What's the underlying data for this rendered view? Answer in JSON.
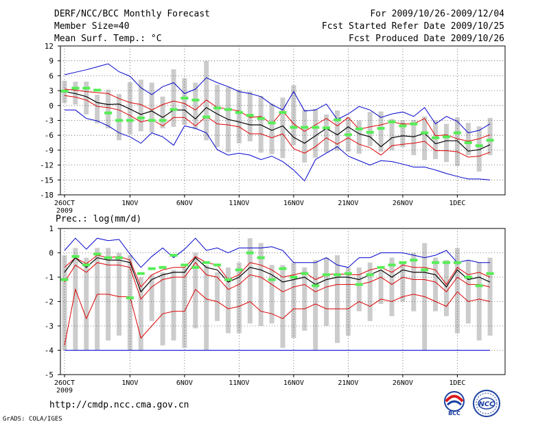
{
  "header": {
    "title": "DERF/NCC/BCC Monthly Forecast",
    "member_size": "Member Size=40",
    "variable": "Mean Surf. Temp.: °C",
    "period": "For 2009/10/26-2009/12/04",
    "start_date": "Fcst Started Refer Date 2009/10/25",
    "produced_date": "Fcst Produced Date 2009/10/26"
  },
  "footer": {
    "url": "http://cmdp.ncc.cma.gov.cn",
    "credit": "GrADS: COLA/IGES",
    "logo_bcc": "BCC",
    "logo_ncc": "NCC"
  },
  "colors": {
    "max_min": "#0000cc",
    "spread": "#dd0000",
    "mean": "#000000",
    "box": "#cccccc",
    "member": "#55ee55",
    "grid": "#555555"
  },
  "chart_data": [
    {
      "type": "line",
      "title": "Mean Surf. Temp.: °C",
      "x_tick_labels": [
        "26OCT",
        "1NOV",
        "6NOV",
        "11NOV",
        "16NOV",
        "21NOV",
        "26NOV",
        "1DEC"
      ],
      "x_tick_days": [
        0,
        6,
        11,
        16,
        21,
        26,
        31,
        36
      ],
      "year_label": "2009",
      "ylim": [
        -18,
        12
      ],
      "yticks": [
        12,
        9,
        6,
        3,
        0,
        -3,
        -6,
        -9,
        -12,
        -15,
        -18
      ],
      "days": 40,
      "series": [
        {
          "name": "max",
          "color": "#0000cc",
          "values": [
            6.2,
            6.7,
            7.2,
            7.8,
            8.4,
            6.8,
            5.9,
            3.6,
            2.2,
            3.8,
            4.6,
            2.4,
            3.3,
            5.6,
            4.6,
            3.8,
            2.8,
            2.4,
            1.8,
            0.2,
            -0.9,
            2.8,
            -1.1,
            -0.9,
            0.3,
            -2.8,
            -1.7,
            -0.2,
            -0.9,
            -2.4,
            -1.7,
            -1.3,
            -2.2,
            -0.4,
            -3.7,
            -2.2,
            -3.2,
            -5.5,
            -5.0,
            -3.7
          ]
        },
        {
          "name": "upper",
          "color": "#dd0000",
          "values": [
            3.3,
            3.1,
            2.8,
            2.6,
            2.4,
            1.4,
            0.6,
            0.2,
            -0.9,
            0.2,
            0.9,
            0.4,
            -0.9,
            1.1,
            -0.4,
            -0.7,
            -1.1,
            -2.4,
            -2.2,
            -3.7,
            -1.1,
            -3.7,
            -5.2,
            -3.9,
            -2.6,
            -4.1,
            -2.4,
            -4.8,
            -4.3,
            -3.9,
            -3.3,
            -3.7,
            -3.7,
            -2.6,
            -6.1,
            -5.9,
            -6.7,
            -7.2,
            -6.7,
            -5.9
          ]
        },
        {
          "name": "mean",
          "color": "#000000",
          "values": [
            2.8,
            2.4,
            1.8,
            0.6,
            0.2,
            0.3,
            -0.7,
            -1.8,
            -1.1,
            -2.4,
            -0.9,
            -0.9,
            -2.7,
            -0.4,
            -1.7,
            -2.8,
            -3.3,
            -3.9,
            -3.9,
            -5.0,
            -4.1,
            -6.4,
            -7.6,
            -6.1,
            -4.6,
            -5.9,
            -4.3,
            -5.7,
            -6.3,
            -8.3,
            -6.5,
            -6.1,
            -6.3,
            -5.6,
            -7.7,
            -7.1,
            -7.1,
            -9.2,
            -8.9,
            -7.9
          ]
        },
        {
          "name": "lower",
          "color": "#dd0000",
          "values": [
            2.0,
            1.7,
            1.1,
            -0.2,
            -0.4,
            -0.9,
            -2.0,
            -3.3,
            -2.8,
            -4.1,
            -2.4,
            -2.4,
            -4.1,
            -2.2,
            -3.7,
            -3.9,
            -4.3,
            -5.7,
            -5.7,
            -6.5,
            -5.7,
            -8.7,
            -9.6,
            -8.3,
            -6.5,
            -7.8,
            -6.5,
            -7.8,
            -8.5,
            -10.0,
            -8.1,
            -7.8,
            -7.6,
            -7.2,
            -9.1,
            -9.1,
            -9.3,
            -10.4,
            -10.2,
            -9.4
          ]
        },
        {
          "name": "min",
          "color": "#0000cc",
          "values": [
            -0.9,
            -0.9,
            -2.6,
            -3.1,
            -4.1,
            -5.5,
            -6.3,
            -7.6,
            -5.5,
            -6.3,
            -8.0,
            -4.1,
            -4.6,
            -5.5,
            -8.9,
            -10.0,
            -9.6,
            -10.0,
            -10.9,
            -10.2,
            -11.3,
            -13.0,
            -15.2,
            -10.9,
            -9.6,
            -8.3,
            -10.2,
            -11.1,
            -12.0,
            -11.1,
            -11.3,
            -11.8,
            -12.4,
            -12.4,
            -13.0,
            -13.7,
            -14.3,
            -14.8,
            -14.8,
            -15.0
          ]
        },
        {
          "name": "member_mark",
          "color": "#55ee55",
          "values": [
            2.9,
            3.5,
            3.5,
            3.1,
            -1.5,
            -3.0,
            -3.0,
            -2.5,
            -3.0,
            -3.0,
            -0.8,
            1.5,
            1.1,
            -2.3,
            -0.5,
            -0.8,
            -1.4,
            -2.0,
            -2.6,
            -3.5,
            -1.4,
            -4.4,
            -4.4,
            -4.4,
            -4.5,
            -2.9,
            -5.9,
            -4.7,
            -5.4,
            -4.6,
            -3.3,
            -4.1,
            -3.7,
            -5.5,
            -6.5,
            -6.3,
            -5.5,
            -7.5,
            -8.1,
            -7.0
          ]
        }
      ],
      "boxes_top": [
        5.0,
        4.8,
        4.8,
        2.2,
        3.2,
        2.3,
        4.7,
        5.2,
        4.6,
        1.8,
        7.3,
        5.5,
        4.6,
        9.0,
        4.2,
        3.7,
        3.2,
        2.8,
        1.9,
        0.4,
        1.6,
        4.1,
        -0.8,
        -0.7,
        -1.8,
        -1.0,
        -2.3,
        -3.0,
        -1.3,
        -1.2,
        -2.7,
        -3.0,
        -2.9,
        -2.2,
        -3.0,
        -3.7,
        -2.4,
        -3.5,
        -4.2,
        -2.5
      ],
      "boxes_bottom": [
        0.5,
        0.2,
        -1.8,
        -3.6,
        -4.6,
        -7.0,
        -5.8,
        -5.2,
        -5.4,
        -4.6,
        -4.3,
        -3.9,
        -4.8,
        -7.0,
        -8.4,
        -9.4,
        -7.6,
        -7.2,
        -9.5,
        -9.8,
        -10.6,
        -8.0,
        -11.5,
        -10.5,
        -9.5,
        -9.1,
        -9.3,
        -9.7,
        -8.2,
        -9.3,
        -9.0,
        -8.4,
        -10.0,
        -11.0,
        -10.8,
        -11.4,
        -12.2,
        -10.0,
        -13.3,
        -10.0
      ]
    },
    {
      "type": "line",
      "title": "Prec.: log(mm/d)",
      "x_tick_labels": [
        "26OCT",
        "1NOV",
        "6NOV",
        "11NOV",
        "16NOV",
        "21NOV",
        "26NOV",
        "1DEC"
      ],
      "x_tick_days": [
        0,
        6,
        11,
        16,
        21,
        26,
        31,
        36
      ],
      "year_label": "2009",
      "ylim": [
        -5,
        1
      ],
      "yticks": [
        1,
        0,
        -1,
        -2,
        -3,
        -4,
        -5
      ],
      "days": 40,
      "series": [
        {
          "name": "max",
          "color": "#0000cc",
          "values": [
            0.1,
            0.6,
            0.15,
            0.6,
            0.5,
            0.55,
            -0.05,
            -0.6,
            -0.15,
            0.2,
            -0.2,
            0.15,
            0.6,
            0.1,
            0.2,
            0.0,
            0.2,
            0.2,
            0.2,
            0.25,
            0.1,
            -0.4,
            -0.4,
            -0.4,
            -0.2,
            -0.5,
            -0.6,
            -0.2,
            -0.2,
            0.0,
            0.0,
            0.0,
            -0.1,
            -0.2,
            -0.1,
            0.1,
            -0.4,
            -0.3,
            -0.4,
            -0.4
          ]
        },
        {
          "name": "upper",
          "color": "#dd0000",
          "values": [
            -0.6,
            -0.2,
            -0.45,
            -0.1,
            -0.2,
            -0.15,
            -0.3,
            -1.4,
            -0.9,
            -0.7,
            -0.6,
            -0.6,
            -0.15,
            -0.4,
            -0.5,
            -1.1,
            -0.9,
            -0.4,
            -0.5,
            -0.7,
            -1.0,
            -0.9,
            -0.8,
            -1.1,
            -0.9,
            -0.85,
            -0.9,
            -0.9,
            -0.7,
            -0.6,
            -0.8,
            -0.5,
            -0.6,
            -0.6,
            -0.7,
            -1.3,
            -0.6,
            -0.9,
            -0.8,
            -1.0
          ]
        },
        {
          "name": "mean",
          "color": "#000000",
          "values": [
            -0.8,
            -0.2,
            -0.6,
            -0.2,
            -0.3,
            -0.3,
            -0.4,
            -1.6,
            -1.1,
            -0.9,
            -0.8,
            -0.8,
            -0.2,
            -0.6,
            -0.7,
            -1.2,
            -1.0,
            -0.6,
            -0.7,
            -0.9,
            -1.2,
            -1.1,
            -1.0,
            -1.3,
            -1.1,
            -1.0,
            -1.0,
            -1.1,
            -0.9,
            -0.7,
            -1.0,
            -0.7,
            -0.8,
            -0.8,
            -0.9,
            -1.4,
            -0.7,
            -1.1,
            -1.0,
            -1.2
          ]
        },
        {
          "name": "lower",
          "color": "#dd0000",
          "values": [
            -1.2,
            -0.5,
            -0.8,
            -0.4,
            -0.5,
            -0.5,
            -0.6,
            -1.9,
            -1.4,
            -1.1,
            -1.0,
            -1.0,
            -0.4,
            -0.9,
            -1.0,
            -1.5,
            -1.3,
            -0.9,
            -1.0,
            -1.3,
            -1.6,
            -1.4,
            -1.3,
            -1.6,
            -1.4,
            -1.3,
            -1.3,
            -1.3,
            -1.2,
            -1.0,
            -1.3,
            -1.0,
            -1.1,
            -1.1,
            -1.2,
            -1.6,
            -1.0,
            -1.3,
            -1.3,
            -1.4
          ]
        },
        {
          "name": "min",
          "color": "#dd0000",
          "values": [
            -3.8,
            -1.5,
            -2.7,
            -1.7,
            -1.7,
            -1.8,
            -1.8,
            -3.5,
            -3.0,
            -2.5,
            -2.4,
            -2.4,
            -1.5,
            -1.9,
            -2.0,
            -2.3,
            -2.2,
            -2.0,
            -2.4,
            -2.5,
            -2.7,
            -2.3,
            -2.3,
            -2.1,
            -2.3,
            -2.3,
            -2.3,
            -2.0,
            -2.2,
            -1.9,
            -2.0,
            -1.8,
            -1.7,
            -1.8,
            -2.0,
            -2.2,
            -1.6,
            -2.0,
            -1.9,
            -2.0
          ]
        },
        {
          "name": "floor",
          "color": "#0000cc",
          "values": [
            -4,
            -4,
            -4,
            -4,
            -4,
            -4,
            -4,
            -4,
            -4,
            -4,
            -4,
            -4,
            -4,
            -4,
            -4,
            -4,
            -4,
            -4,
            -4,
            -4,
            -4,
            -4,
            -4,
            -4,
            -4,
            -4,
            -4,
            -4,
            -4,
            -4,
            -4,
            -4,
            -4,
            -4,
            -4,
            -4,
            -4,
            -4,
            -4,
            -4
          ]
        },
        {
          "name": "member_mark",
          "color": "#55ee55",
          "values": [
            -1.1,
            -0.15,
            -0.5,
            -0.05,
            -0.2,
            -0.2,
            -1.85,
            -0.85,
            -0.65,
            -0.6,
            -0.1,
            -0.5,
            -0.6,
            -0.4,
            -0.5,
            -1.1,
            -0.7,
            0.0,
            -0.2,
            -1.1,
            -0.65,
            -1.0,
            -0.85,
            -1.35,
            -0.9,
            -0.9,
            -0.85,
            -1.3,
            -0.9,
            -0.6,
            -0.5,
            -0.4,
            -0.3,
            -0.7,
            -0.4,
            -0.4,
            -0.4,
            -1.0,
            -1.35,
            -0.85
          ]
        }
      ],
      "boxes_top": [
        -0.1,
        0.2,
        -0.2,
        0.2,
        0.2,
        0.0,
        -0.1,
        -1.0,
        -0.9,
        -0.8,
        -0.7,
        -0.6,
        0.0,
        -0.5,
        -0.8,
        -0.6,
        -0.4,
        0.6,
        0.4,
        -0.5,
        -0.5,
        -0.4,
        -0.6,
        -0.3,
        -0.2,
        -0.1,
        -0.6,
        -0.6,
        -0.4,
        -0.7,
        -0.2,
        -0.4,
        0.0,
        0.4,
        -0.2,
        -0.3,
        0.2,
        -0.3,
        -0.4,
        -0.2
      ],
      "boxes_bottom": [
        -4.0,
        -4.0,
        -4.0,
        -4.0,
        -3.6,
        -3.4,
        -4.0,
        -4.0,
        -2.8,
        -3.8,
        -3.6,
        -3.9,
        -3.1,
        -4.0,
        -2.8,
        -3.3,
        -3.3,
        -2.9,
        -3.0,
        -2.9,
        -3.9,
        -3.5,
        -3.2,
        -4.0,
        -3.0,
        -3.7,
        -3.4,
        -2.4,
        -2.8,
        -2.1,
        -2.6,
        -2.0,
        -2.4,
        -4.0,
        -2.4,
        -2.6,
        -3.3,
        -2.9,
        -3.6,
        -3.4
      ]
    }
  ]
}
